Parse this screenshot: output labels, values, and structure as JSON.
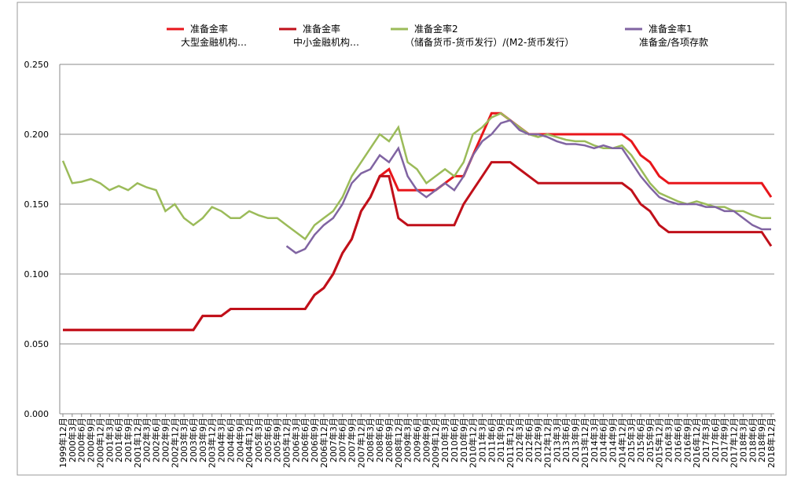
{
  "chart_data": {
    "type": "line",
    "categories": [
      "1999年12月",
      "2000年3月",
      "2000年6月",
      "2000年9月",
      "2000年12月",
      "2001年3月",
      "2001年6月",
      "2001年9月",
      "2001年12月",
      "2002年3月",
      "2002年6月",
      "2002年9月",
      "2002年12月",
      "2003年3月",
      "2003年6月",
      "2003年9月",
      "2003年12月",
      "2004年3月",
      "2004年6月",
      "2004年9月",
      "2004年12月",
      "2005年3月",
      "2005年6月",
      "2005年9月",
      "2005年12月",
      "2006年3月",
      "2006年6月",
      "2006年9月",
      "2006年12月",
      "2007年3月",
      "2007年6月",
      "2007年9月",
      "2007年12月",
      "2008年3月",
      "2008年6月",
      "2008年9月",
      "2008年12月",
      "2009年3月",
      "2009年6月",
      "2009年9月",
      "2009年12月",
      "2010年3月",
      "2010年6月",
      "2010年9月",
      "2010年12月",
      "2011年3月",
      "2011年6月",
      "2011年9月",
      "2011年12月",
      "2012年3月",
      "2012年6月",
      "2012年9月",
      "2012年12月",
      "2013年3月",
      "2013年6月",
      "2013年9月",
      "2013年12月",
      "2014年3月",
      "2014年6月",
      "2014年9月",
      "2014年12月",
      "2015年3月",
      "2015年6月",
      "2015年9月",
      "2015年12月",
      "2016年3月",
      "2016年6月",
      "2016年9月",
      "2016年12月",
      "2017年3月",
      "2017年6月",
      "2017年9月",
      "2017年12月",
      "2018年3月",
      "2018年6月",
      "2018年9月",
      "2018年12月"
    ],
    "series": [
      {
        "name": "准备金率\n大型金融机构…",
        "color": "#e8161b",
        "values": [
          0.06,
          0.06,
          0.06,
          0.06,
          0.06,
          0.06,
          0.06,
          0.06,
          0.06,
          0.06,
          0.06,
          0.06,
          0.06,
          0.06,
          0.06,
          0.07,
          0.07,
          0.07,
          0.075,
          0.075,
          0.075,
          0.075,
          0.075,
          0.075,
          0.075,
          0.075,
          0.075,
          0.085,
          0.09,
          0.1,
          0.115,
          0.125,
          0.145,
          0.155,
          0.17,
          0.175,
          0.16,
          0.16,
          0.16,
          0.16,
          0.16,
          0.165,
          0.17,
          0.17,
          0.185,
          0.2,
          0.215,
          0.215,
          0.21,
          0.205,
          0.2,
          0.2,
          0.2,
          0.2,
          0.2,
          0.2,
          0.2,
          0.2,
          0.2,
          0.2,
          0.2,
          0.195,
          0.185,
          0.18,
          0.17,
          0.165,
          0.165,
          0.165,
          0.165,
          0.165,
          0.165,
          0.165,
          0.165,
          0.165,
          0.165,
          0.165,
          0.155
        ]
      },
      {
        "name": "准备金率\n中小金融机构…",
        "color": "#c0101a",
        "values": [
          0.06,
          0.06,
          0.06,
          0.06,
          0.06,
          0.06,
          0.06,
          0.06,
          0.06,
          0.06,
          0.06,
          0.06,
          0.06,
          0.06,
          0.06,
          0.07,
          0.07,
          0.07,
          0.075,
          0.075,
          0.075,
          0.075,
          0.075,
          0.075,
          0.075,
          0.075,
          0.075,
          0.085,
          0.09,
          0.1,
          0.115,
          0.125,
          0.145,
          0.155,
          0.17,
          0.17,
          0.14,
          0.135,
          0.135,
          0.135,
          0.135,
          0.135,
          0.135,
          0.15,
          0.16,
          0.17,
          0.18,
          0.18,
          0.18,
          0.175,
          0.17,
          0.165,
          0.165,
          0.165,
          0.165,
          0.165,
          0.165,
          0.165,
          0.165,
          0.165,
          0.165,
          0.16,
          0.15,
          0.145,
          0.135,
          0.13,
          0.13,
          0.13,
          0.13,
          0.13,
          0.13,
          0.13,
          0.13,
          0.13,
          0.13,
          0.13,
          0.12
        ]
      },
      {
        "name": "准备金率2\n（储备货币-货币发行）/(M2-货币发行）",
        "color": "#9bbb59",
        "values": [
          0.181,
          0.165,
          0.166,
          0.168,
          0.165,
          0.16,
          0.163,
          0.16,
          0.165,
          0.162,
          0.16,
          0.145,
          0.15,
          0.14,
          0.135,
          0.14,
          0.148,
          0.145,
          0.14,
          0.14,
          0.145,
          0.142,
          0.14,
          0.14,
          0.135,
          0.13,
          0.125,
          0.135,
          0.14,
          0.145,
          0.155,
          0.17,
          0.18,
          0.19,
          0.2,
          0.195,
          0.205,
          0.18,
          0.175,
          0.165,
          0.17,
          0.175,
          0.17,
          0.18,
          0.2,
          0.205,
          0.212,
          0.215,
          0.21,
          0.205,
          0.2,
          0.198,
          0.2,
          0.198,
          0.196,
          0.195,
          0.195,
          0.192,
          0.19,
          0.19,
          0.192,
          0.185,
          0.175,
          0.165,
          0.158,
          0.155,
          0.152,
          0.15,
          0.152,
          0.15,
          0.148,
          0.148,
          0.145,
          0.145,
          0.142,
          0.14,
          0.14
        ]
      },
      {
        "name": "准备金率1\n准备金/各项存款",
        "color": "#8064a2",
        "values": [
          null,
          null,
          null,
          null,
          null,
          null,
          null,
          null,
          null,
          null,
          null,
          null,
          null,
          null,
          null,
          null,
          null,
          null,
          null,
          null,
          null,
          null,
          null,
          null,
          0.12,
          0.115,
          0.118,
          0.128,
          0.135,
          0.14,
          0.15,
          0.165,
          0.172,
          0.175,
          0.185,
          0.18,
          0.19,
          0.17,
          0.16,
          0.155,
          0.16,
          0.165,
          0.16,
          0.17,
          0.185,
          0.195,
          0.2,
          0.208,
          0.21,
          0.203,
          0.2,
          0.2,
          0.198,
          0.195,
          0.193,
          0.193,
          0.192,
          0.19,
          0.192,
          0.19,
          0.19,
          0.18,
          0.17,
          0.162,
          0.155,
          0.152,
          0.15,
          0.15,
          0.15,
          0.148,
          0.148,
          0.145,
          0.145,
          0.14,
          0.135,
          0.132,
          0.132
        ]
      }
    ],
    "ylim": [
      0,
      0.25
    ],
    "yticks": [
      {
        "value": 0,
        "label": "0.000"
      },
      {
        "value": 0.05,
        "label": "0.050"
      },
      {
        "value": 0.1,
        "label": "0.100"
      },
      {
        "value": 0.15,
        "label": "0.150"
      },
      {
        "value": 0.2,
        "label": "0.200"
      },
      {
        "value": 0.25,
        "label": "0.250"
      }
    ],
    "grid": true,
    "legend": "top"
  }
}
